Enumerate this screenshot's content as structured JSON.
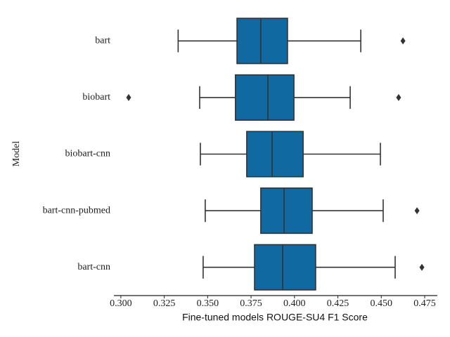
{
  "chart_data": {
    "type": "box",
    "xlabel": "Fine-tuned models ROUGE-SU4 F1 Score",
    "ylabel": "Model",
    "categories": [
      "bart",
      "biobart",
      "biobart-cnn",
      "bart-cnn-pubmed",
      "bart-cnn"
    ],
    "color": "#1069a0",
    "min": [
      0.333,
      0.3454,
      0.3458,
      0.3486,
      0.3474
    ],
    "q1": [
      0.3669,
      0.366,
      0.3725,
      0.3806,
      0.377
    ],
    "median": [
      0.3806,
      0.3847,
      0.3871,
      0.394,
      0.3932
    ],
    "q3": [
      0.396,
      0.3997,
      0.405,
      0.4102,
      0.4122
    ],
    "max": [
      0.4382,
      0.4321,
      0.4495,
      0.4511,
      0.458
    ],
    "outliers": [
      [
        0.4625
      ],
      [
        0.3045,
        0.46
      ],
      [],
      [
        0.4706
      ],
      [
        0.4734
      ]
    ],
    "xlim": [
      0.296,
      0.4823
    ],
    "xticks": [
      {
        "value": 0.3,
        "label": "0.300"
      },
      0.325,
      {
        "value": 0.35,
        "label": "0.350"
      },
      0.375,
      {
        "value": 0.4,
        "label": "0.400"
      },
      0.425,
      {
        "value": 0.45,
        "label": "0.450"
      },
      0.475
    ]
  }
}
